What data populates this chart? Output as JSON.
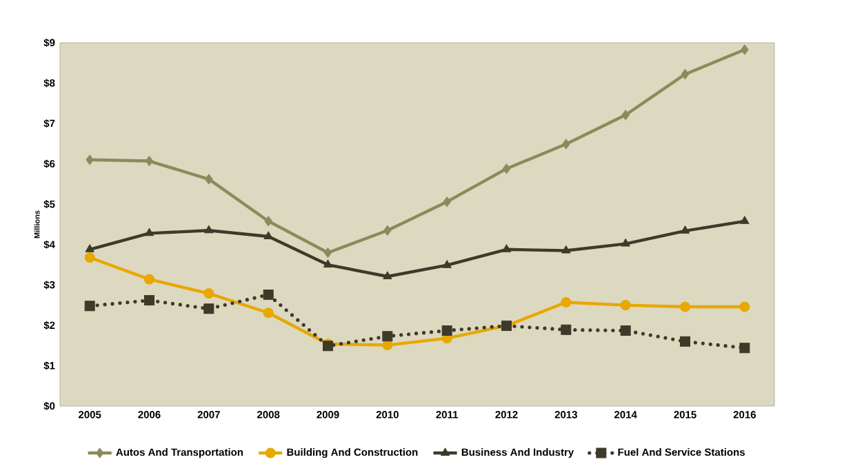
{
  "chart_data": {
    "type": "line",
    "ylabel": "Millions",
    "categories": [
      "2005",
      "2006",
      "2007",
      "2008",
      "2009",
      "2010",
      "2011",
      "2012",
      "2013",
      "2014",
      "2015",
      "2016"
    ],
    "ylim": [
      0,
      9
    ],
    "yticks": [
      {
        "value": 0,
        "label": "$0"
      },
      {
        "value": 1,
        "label": "$1"
      },
      {
        "value": 2,
        "label": "$2"
      },
      {
        "value": 3,
        "label": "$3"
      },
      {
        "value": 4,
        "label": "$4"
      },
      {
        "value": 5,
        "label": "$5"
      },
      {
        "value": 6,
        "label": "$6"
      },
      {
        "value": 7,
        "label": "$7"
      },
      {
        "value": 8,
        "label": "$8"
      },
      {
        "value": 9,
        "label": "$9"
      }
    ],
    "grid": false,
    "legend": "bottom",
    "series": [
      {
        "name": "Autos And Transportation",
        "color": "#8c8a5a",
        "marker": "diamond",
        "line_style": "solid",
        "values": [
          6.1,
          6.07,
          5.62,
          4.58,
          3.8,
          4.35,
          5.06,
          5.88,
          6.49,
          7.21,
          8.22,
          8.83
        ]
      },
      {
        "name": "Building And Construction",
        "color": "#e8a800",
        "marker": "circle",
        "line_style": "solid",
        "values": [
          3.68,
          3.14,
          2.79,
          2.31,
          1.54,
          1.51,
          1.68,
          1.99,
          2.57,
          2.5,
          2.46,
          2.46
        ]
      },
      {
        "name": "Business And Industry",
        "color": "#3e3a2a",
        "marker": "triangle",
        "line_style": "solid",
        "values": [
          3.88,
          4.28,
          4.35,
          4.2,
          3.5,
          3.21,
          3.49,
          3.88,
          3.85,
          4.02,
          4.34,
          4.58
        ]
      },
      {
        "name": "Fuel And Service Stations",
        "color": "#3e3a2a",
        "marker": "square",
        "line_style": "dotted",
        "values": [
          2.48,
          2.62,
          2.41,
          2.76,
          1.49,
          1.73,
          1.87,
          1.99,
          1.89,
          1.87,
          1.6,
          1.44
        ]
      }
    ]
  }
}
